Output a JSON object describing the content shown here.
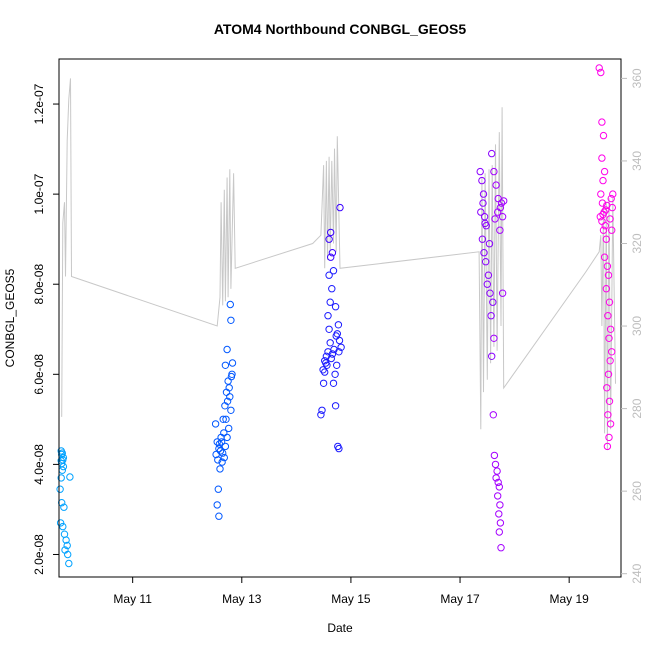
{
  "chart_data": {
    "type": "scatter",
    "title": "ATOM4 Northbound CONBGL_GEOS5",
    "xlabel": "Date",
    "ylabel": "CONBGL_GEOS5",
    "xlim": [
      9.65,
      19.95
    ],
    "ylim": [
      1.5e-08,
      1.3e-07
    ],
    "y2lim": [
      239.2,
      364.7
    ],
    "x_ticks": [
      {
        "value": 11,
        "label": "May 11"
      },
      {
        "value": 13,
        "label": "May 13"
      },
      {
        "value": 15,
        "label": "May 15"
      },
      {
        "value": 17,
        "label": "May 17"
      },
      {
        "value": 19,
        "label": "May 19"
      }
    ],
    "y_ticks": [
      {
        "value": 2e-08,
        "label": "2.0e-08"
      },
      {
        "value": 4e-08,
        "label": "4.0e-08"
      },
      {
        "value": 6e-08,
        "label": "6.0e-08"
      },
      {
        "value": 8e-08,
        "label": "8.0e-08"
      },
      {
        "value": 1e-07,
        "label": "1.0e-07"
      },
      {
        "value": 1.2e-07,
        "label": "1.2e-07"
      }
    ],
    "y2_ticks": [
      {
        "value": 240,
        "label": "240"
      },
      {
        "value": 260,
        "label": "260"
      },
      {
        "value": 280,
        "label": "280"
      },
      {
        "value": 300,
        "label": "300"
      },
      {
        "value": 320,
        "label": "320"
      },
      {
        "value": 340,
        "label": "340"
      },
      {
        "value": 360,
        "label": "360"
      }
    ],
    "grid": false,
    "series": [
      {
        "name": "CONBGL_GEOS5 (points)",
        "axis": "left",
        "marker": "open-circle",
        "colors": [
          "#00a2ff",
          "#0057ff",
          "#1a1aff",
          "#8a00ff",
          "#ff00ea"
        ],
        "points": [
          [
            9.69,
            4.3e-08
          ],
          [
            9.7,
            4.22e-08
          ],
          [
            9.72,
            4.1e-08
          ],
          [
            9.7,
            4.02e-08
          ],
          [
            9.73,
            3.95e-08
          ],
          [
            9.71,
            3.87e-08
          ],
          [
            9.69,
            3.7e-08
          ],
          [
            9.67,
            3.45e-08
          ],
          [
            9.7,
            3.15e-08
          ],
          [
            9.74,
            3.05e-08
          ],
          [
            9.68,
            2.7e-08
          ],
          [
            9.72,
            2.62e-08
          ],
          [
            9.75,
            2.45e-08
          ],
          [
            9.78,
            2.32e-08
          ],
          [
            9.8,
            2.2e-08
          ],
          [
            9.76,
            2.1e-08
          ],
          [
            9.81,
            2e-08
          ],
          [
            9.83,
            1.8e-08
          ],
          [
            9.85,
            3.72e-08
          ],
          [
            9.71,
            4.25e-08
          ],
          [
            9.73,
            4.15e-08
          ],
          [
            9.69,
            4.08e-08
          ],
          [
            12.52,
            4.9e-08
          ],
          [
            12.55,
            4.5e-08
          ],
          [
            12.58,
            4.35e-08
          ],
          [
            12.53,
            4.22e-08
          ],
          [
            12.56,
            4.1e-08
          ],
          [
            12.6,
            3.9e-08
          ],
          [
            12.57,
            3.45e-08
          ],
          [
            12.55,
            3.1e-08
          ],
          [
            12.58,
            2.85e-08
          ],
          [
            12.62,
            4.6e-08
          ],
          [
            12.66,
            5e-08
          ],
          [
            12.69,
            5.3e-08
          ],
          [
            12.72,
            5.6e-08
          ],
          [
            12.75,
            5.85e-08
          ],
          [
            12.7,
            6.2e-08
          ],
          [
            12.73,
            6.55e-08
          ],
          [
            12.79,
            7.55e-08
          ],
          [
            12.8,
            7.2e-08
          ],
          [
            12.83,
            6.25e-08
          ],
          [
            12.82,
            6e-08
          ],
          [
            12.78,
            5.5e-08
          ],
          [
            12.8,
            5.2e-08
          ],
          [
            12.76,
            4.8e-08
          ],
          [
            12.73,
            4.6e-08
          ],
          [
            12.7,
            4.4e-08
          ],
          [
            12.68,
            4.15e-08
          ],
          [
            12.64,
            4.05e-08
          ],
          [
            12.61,
            4.3e-08
          ],
          [
            12.63,
            4.5e-08
          ],
          [
            12.67,
            4.7e-08
          ],
          [
            12.71,
            5e-08
          ],
          [
            12.74,
            5.4e-08
          ],
          [
            12.77,
            5.7e-08
          ],
          [
            12.81,
            5.95e-08
          ],
          [
            12.59,
            4.45e-08
          ],
          [
            12.65,
            4.25e-08
          ],
          [
            14.45,
            5.1e-08
          ],
          [
            14.47,
            5.2e-08
          ],
          [
            14.5,
            5.8e-08
          ],
          [
            14.49,
            6.1e-08
          ],
          [
            14.52,
            6.3e-08
          ],
          [
            14.55,
            6.4e-08
          ],
          [
            14.58,
            6.5e-08
          ],
          [
            14.62,
            6.7e-08
          ],
          [
            14.6,
            7e-08
          ],
          [
            14.58,
            7.3e-08
          ],
          [
            14.62,
            7.6e-08
          ],
          [
            14.65,
            7.9e-08
          ],
          [
            14.6,
            8.2e-08
          ],
          [
            14.63,
            8.6e-08
          ],
          [
            14.66,
            8.7e-08
          ],
          [
            14.6,
            9e-08
          ],
          [
            14.63,
            9.15e-08
          ],
          [
            14.68,
            8.3e-08
          ],
          [
            14.72,
            7.5e-08
          ],
          [
            14.75,
            6.9e-08
          ],
          [
            14.78,
            6.5e-08
          ],
          [
            14.74,
            6.2e-08
          ],
          [
            14.71,
            6e-08
          ],
          [
            14.68,
            5.8e-08
          ],
          [
            14.72,
            5.3e-08
          ],
          [
            14.76,
            4.4e-08
          ],
          [
            14.78,
            4.35e-08
          ],
          [
            14.8,
            9.7e-08
          ],
          [
            14.82,
            6.6e-08
          ],
          [
            14.79,
            6.75e-08
          ],
          [
            14.52,
            6.05e-08
          ],
          [
            14.56,
            6.2e-08
          ],
          [
            14.64,
            6.35e-08
          ],
          [
            14.69,
            6.55e-08
          ],
          [
            14.73,
            6.85e-08
          ],
          [
            14.77,
            7.1e-08
          ],
          [
            14.54,
            6.25e-08
          ],
          [
            14.66,
            6.45e-08
          ],
          [
            17.37,
            1.05e-07
          ],
          [
            17.4,
            1.03e-07
          ],
          [
            17.43,
            1e-07
          ],
          [
            17.42,
            9.8e-08
          ],
          [
            17.45,
            9.5e-08
          ],
          [
            17.48,
            9.3e-08
          ],
          [
            17.41,
            9e-08
          ],
          [
            17.44,
            8.7e-08
          ],
          [
            17.47,
            8.5e-08
          ],
          [
            17.52,
            8.2e-08
          ],
          [
            17.5,
            8e-08
          ],
          [
            17.55,
            7.8e-08
          ],
          [
            17.57,
            7.3e-08
          ],
          [
            17.6,
            7.6e-08
          ],
          [
            17.62,
            6.8e-08
          ],
          [
            17.58,
            6.4e-08
          ],
          [
            17.61,
            5.1e-08
          ],
          [
            17.63,
            4.2e-08
          ],
          [
            17.65,
            4e-08
          ],
          [
            17.68,
            3.85e-08
          ],
          [
            17.66,
            3.7e-08
          ],
          [
            17.7,
            3.6e-08
          ],
          [
            17.72,
            3.5e-08
          ],
          [
            17.69,
            3.3e-08
          ],
          [
            17.73,
            3.1e-08
          ],
          [
            17.71,
            2.9e-08
          ],
          [
            17.74,
            2.7e-08
          ],
          [
            17.72,
            2.5e-08
          ],
          [
            17.75,
            2.15e-08
          ],
          [
            17.58,
            1.09e-07
          ],
          [
            17.62,
            1.05e-07
          ],
          [
            17.66,
            1.02e-07
          ],
          [
            17.7,
            9.9e-08
          ],
          [
            17.74,
            9.7e-08
          ],
          [
            17.78,
            9.5e-08
          ],
          [
            17.76,
            9.8e-08
          ],
          [
            17.8,
            9.85e-08
          ],
          [
            17.73,
            9.2e-08
          ],
          [
            17.78,
            7.8e-08
          ],
          [
            17.38,
            9.6e-08
          ],
          [
            17.46,
            9.35e-08
          ],
          [
            17.54,
            8.9e-08
          ],
          [
            17.64,
            9.45e-08
          ],
          [
            17.69,
            9.6e-08
          ],
          [
            19.55,
            1.28e-07
          ],
          [
            19.58,
            1.27e-07
          ],
          [
            19.6,
            1.16e-07
          ],
          [
            19.63,
            1.13e-07
          ],
          [
            19.6,
            1.08e-07
          ],
          [
            19.65,
            1.05e-07
          ],
          [
            19.62,
            1.03e-07
          ],
          [
            19.58,
            1e-07
          ],
          [
            19.61,
            9.8e-08
          ],
          [
            19.64,
            9.6e-08
          ],
          [
            19.6,
            9.4e-08
          ],
          [
            19.66,
            9.3e-08
          ],
          [
            19.63,
            9.2e-08
          ],
          [
            19.68,
            9e-08
          ],
          [
            19.65,
            8.6e-08
          ],
          [
            19.7,
            8.4e-08
          ],
          [
            19.72,
            8.2e-08
          ],
          [
            19.68,
            7.9e-08
          ],
          [
            19.74,
            7.6e-08
          ],
          [
            19.71,
            7.3e-08
          ],
          [
            19.76,
            7e-08
          ],
          [
            19.73,
            6.8e-08
          ],
          [
            19.78,
            6.5e-08
          ],
          [
            19.75,
            6.3e-08
          ],
          [
            19.72,
            6e-08
          ],
          [
            19.69,
            5.7e-08
          ],
          [
            19.74,
            5.4e-08
          ],
          [
            19.71,
            5.1e-08
          ],
          [
            19.76,
            4.9e-08
          ],
          [
            19.73,
            4.6e-08
          ],
          [
            19.7,
            4.4e-08
          ],
          [
            19.77,
            9.9e-08
          ],
          [
            19.8,
            1e-07
          ],
          [
            19.79,
            9.7e-08
          ],
          [
            19.57,
            9.5e-08
          ],
          [
            19.62,
            9.55e-08
          ],
          [
            19.67,
            9.65e-08
          ],
          [
            19.69,
            9.75e-08
          ],
          [
            19.75,
            9.45e-08
          ],
          [
            19.78,
            9.2e-08
          ]
        ]
      },
      {
        "name": "secondary trace (line)",
        "axis": "right",
        "color": "#c8c8c8",
        "points": [
          [
            9.7,
            278
          ],
          [
            9.72,
            325
          ],
          [
            9.75,
            330
          ],
          [
            9.77,
            312
          ],
          [
            9.8,
            345
          ],
          [
            9.83,
            355
          ],
          [
            9.86,
            360
          ],
          [
            9.88,
            312
          ],
          [
            12.55,
            300
          ],
          [
            12.6,
            307
          ],
          [
            12.62,
            330
          ],
          [
            12.65,
            305
          ],
          [
            12.68,
            333
          ],
          [
            12.7,
            306
          ],
          [
            12.73,
            336
          ],
          [
            12.75,
            307
          ],
          [
            12.78,
            338
          ],
          [
            12.8,
            309
          ],
          [
            12.85,
            337
          ],
          [
            12.88,
            314
          ],
          [
            14.3,
            320
          ],
          [
            14.45,
            322
          ],
          [
            14.5,
            339
          ],
          [
            14.52,
            314
          ],
          [
            14.55,
            340
          ],
          [
            14.57,
            316
          ],
          [
            14.6,
            341
          ],
          [
            14.62,
            318
          ],
          [
            14.65,
            340
          ],
          [
            14.68,
            320
          ],
          [
            14.7,
            343
          ],
          [
            14.73,
            318
          ],
          [
            14.75,
            346
          ],
          [
            14.8,
            314
          ],
          [
            17.35,
            318
          ],
          [
            17.38,
            275
          ],
          [
            17.4,
            336
          ],
          [
            17.43,
            284
          ],
          [
            17.46,
            337
          ],
          [
            17.5,
            287
          ],
          [
            17.53,
            338
          ],
          [
            17.56,
            291
          ],
          [
            17.59,
            339
          ],
          [
            17.62,
            295
          ],
          [
            17.65,
            344
          ],
          [
            17.68,
            294
          ],
          [
            17.72,
            347
          ],
          [
            17.75,
            300
          ],
          [
            17.77,
            353
          ],
          [
            17.8,
            285
          ],
          [
            19.3,
            313
          ],
          [
            19.55,
            318
          ],
          [
            19.58,
            322
          ],
          [
            19.6,
            300
          ],
          [
            19.63,
            329
          ],
          [
            19.65,
            274
          ],
          [
            19.68,
            330
          ],
          [
            19.7,
            270
          ],
          [
            19.73,
            331
          ],
          [
            19.76,
            275
          ],
          [
            19.8,
            331
          ],
          [
            19.85,
            286
          ]
        ]
      }
    ]
  }
}
